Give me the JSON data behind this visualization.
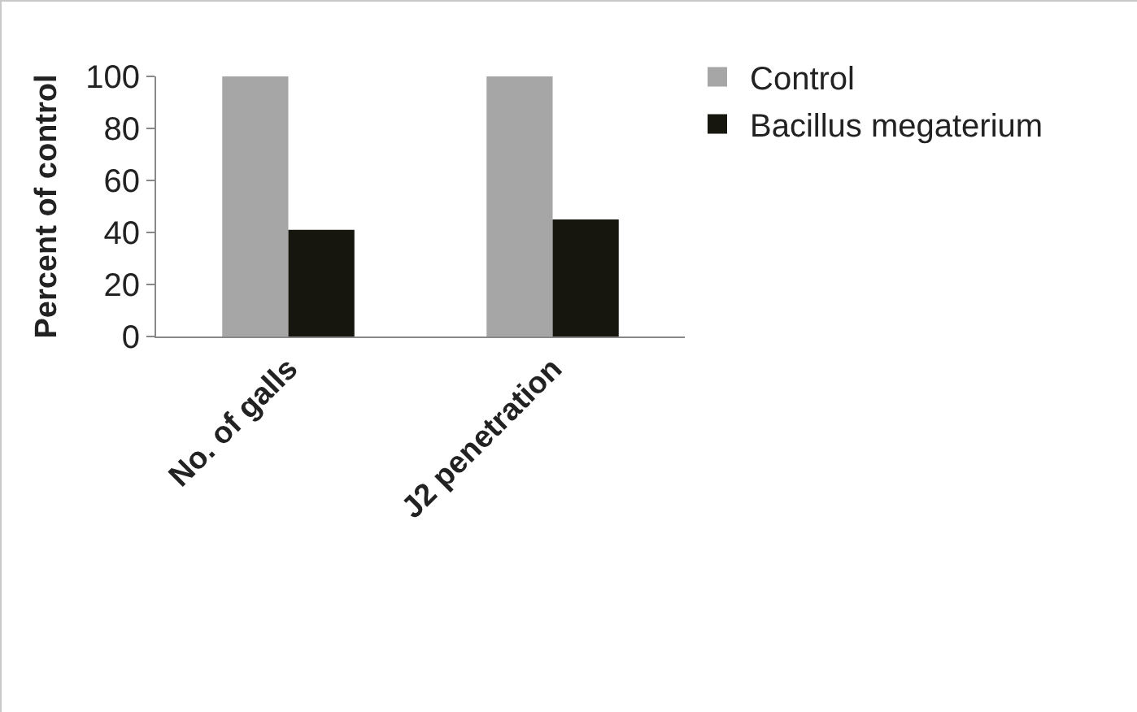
{
  "chart_data": {
    "type": "bar",
    "ylabel": "Percent of control",
    "categories": [
      "No. of galls",
      "J2 penetration"
    ],
    "series": [
      {
        "name": "Control",
        "color": "#a6a6a6",
        "values": [
          100,
          100
        ]
      },
      {
        "name": "Bacillus megaterium",
        "color": "#16160f",
        "values": [
          41,
          45
        ]
      }
    ],
    "ylim": [
      0,
      100
    ],
    "yticks": [
      0,
      20,
      40,
      60,
      80,
      100
    ],
    "grid": false,
    "legend": "top right"
  }
}
